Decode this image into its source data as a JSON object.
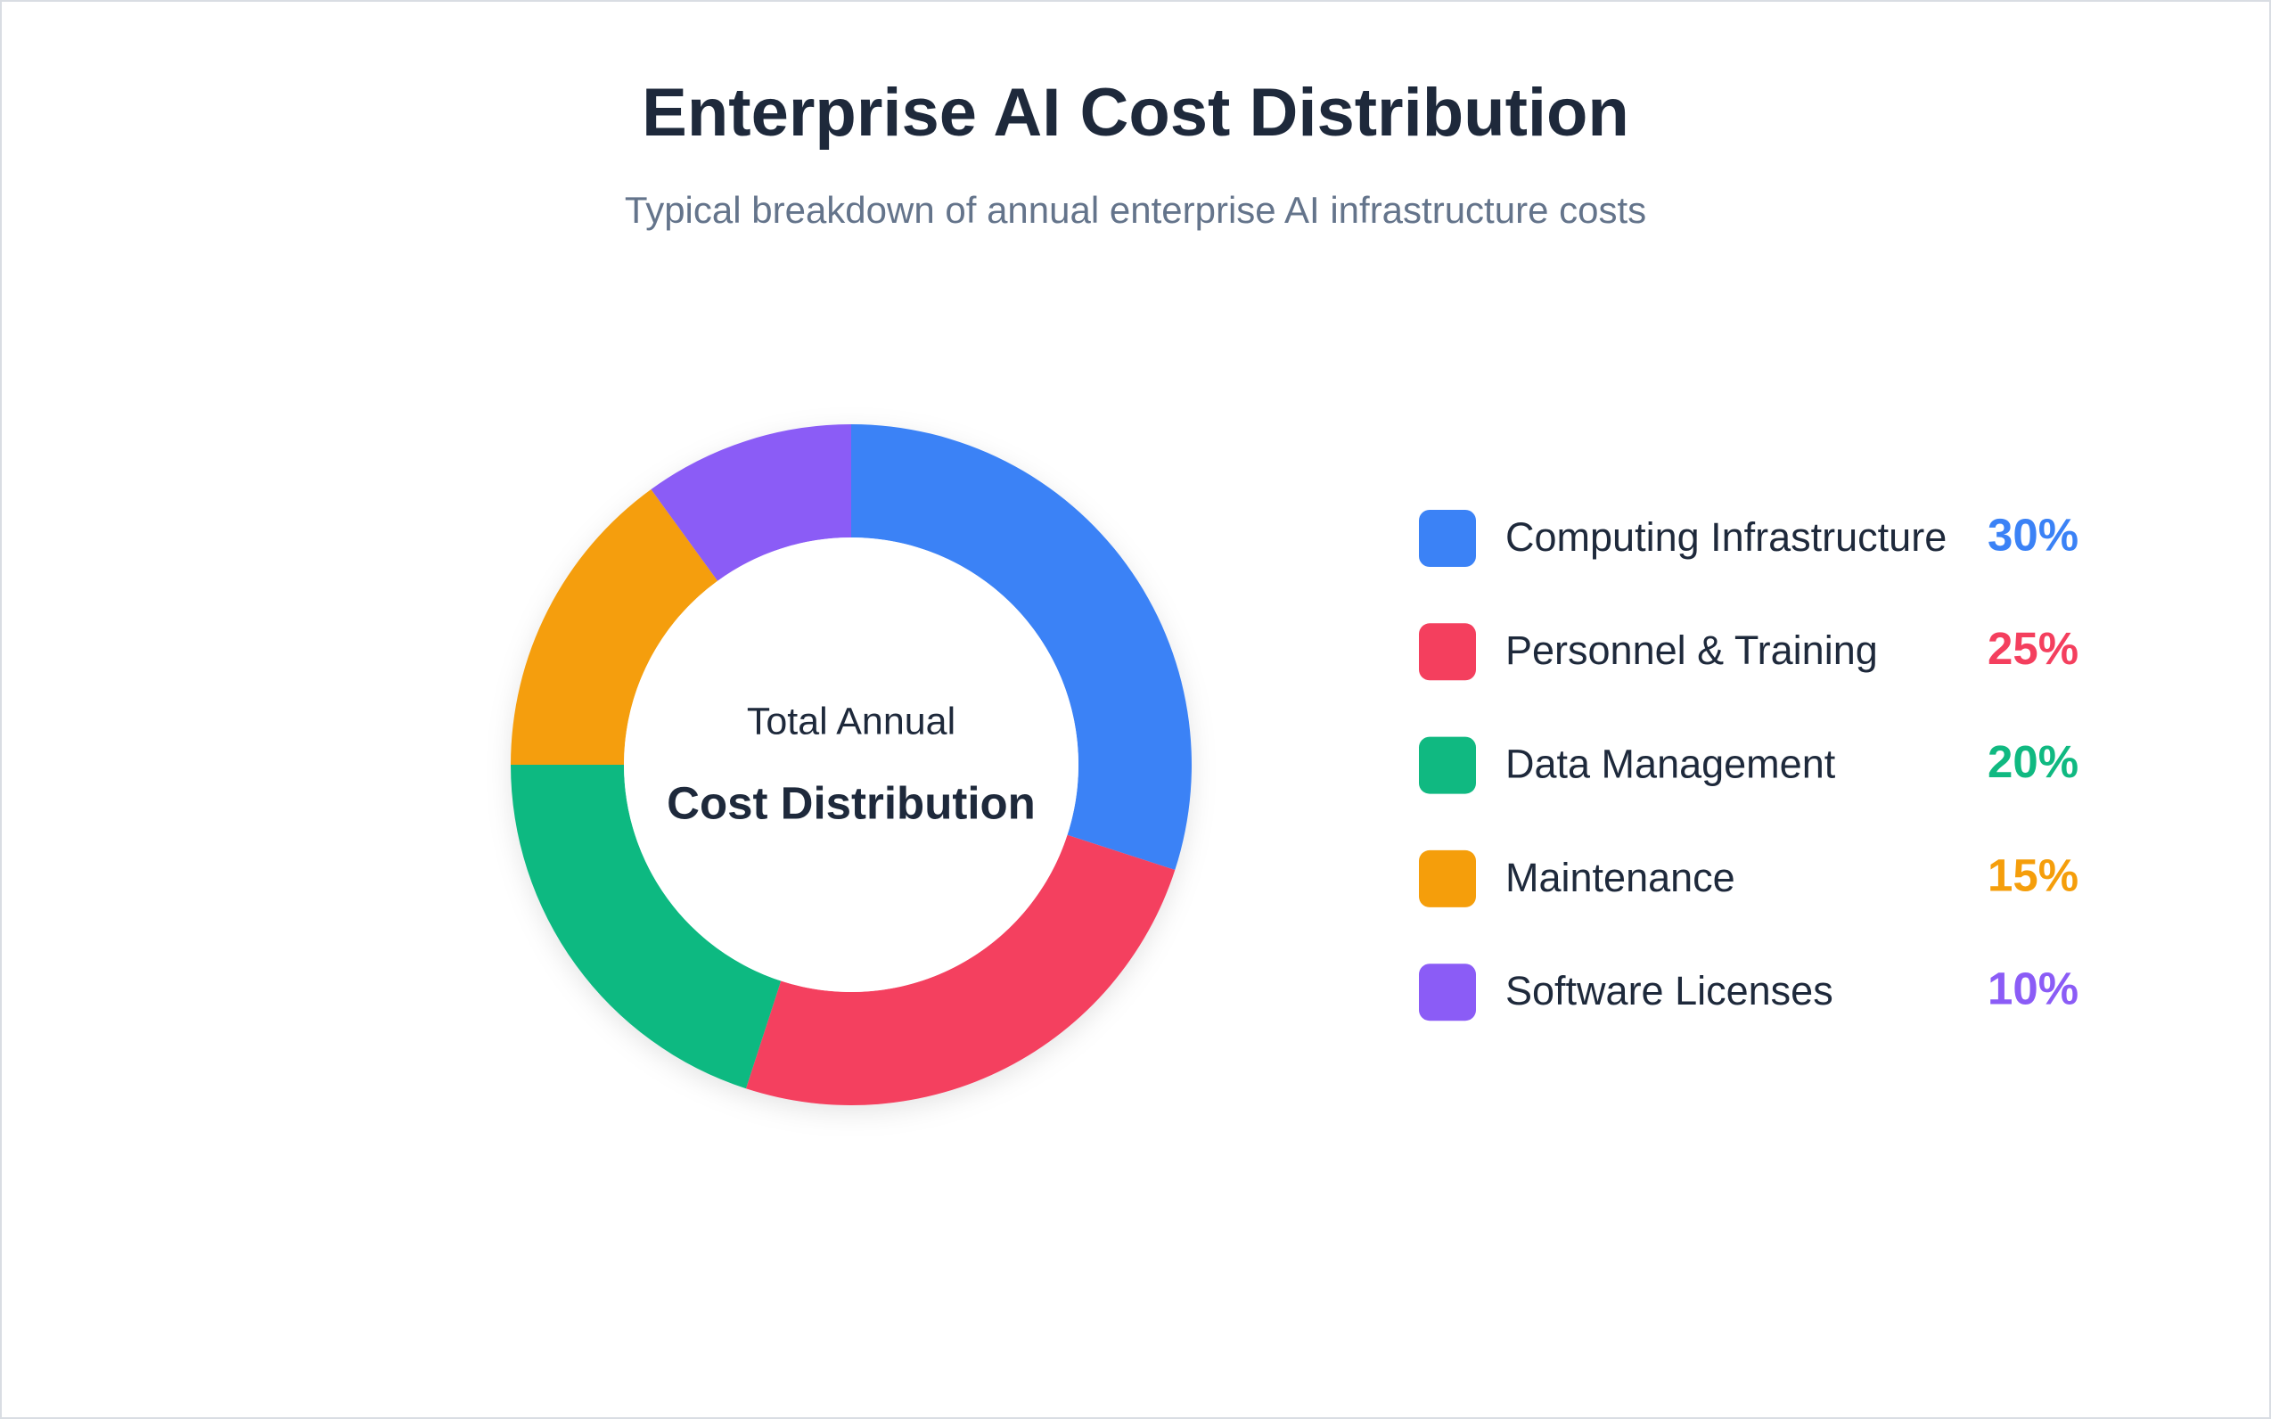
{
  "chart_data": {
    "type": "pie",
    "title": "Enterprise AI Cost Distribution",
    "subtitle": "Typical breakdown of annual enterprise AI infrastructure costs",
    "center_text": [
      "Total Annual",
      "Cost Distribution"
    ],
    "categories": [
      "Computing Infrastructure",
      "Personnel & Training",
      "Data Management",
      "Maintenance",
      "Software Licenses"
    ],
    "values": [
      30,
      25,
      20,
      15,
      10
    ],
    "value_labels": [
      "30%",
      "25%",
      "20%",
      "15%",
      "10%"
    ],
    "colors": [
      "#3b82f6",
      "#f43f5e",
      "#10b981",
      "#f59e0b",
      "#8b5cf6"
    ],
    "legend": "right"
  }
}
